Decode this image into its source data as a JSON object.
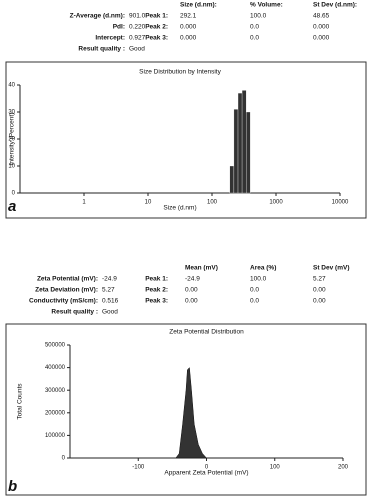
{
  "panel_a": {
    "label": "a",
    "summary": {
      "left": [
        [
          "Z-Average (d.nm):",
          "901.0"
        ],
        [
          "PdI:",
          "0.220"
        ],
        [
          "Intercept:",
          "0.927"
        ],
        [
          "Result quality :",
          "Good"
        ]
      ],
      "columns": [
        "Size (d.nm):",
        "% Volume:",
        "St Dev (d.nm):"
      ],
      "peaks": [
        [
          "Peak 1:",
          "292.1",
          "100.0",
          "48.65"
        ],
        [
          "Peak 2:",
          "0.000",
          "0.0",
          "0.000"
        ],
        [
          "Peak 3:",
          "0.000",
          "0.0",
          "0.000"
        ]
      ]
    }
  },
  "panel_b": {
    "label": "b",
    "summary": {
      "left": [
        [
          "Zeta Potential (mV):",
          "-24.9"
        ],
        [
          "Zeta Deviation (mV):",
          "5.27"
        ],
        [
          "Conductivity (mS/cm):",
          "0.516"
        ],
        [
          "Result quality :",
          "Good"
        ]
      ],
      "columns": [
        "Mean (mV)",
        "Area (%)",
        "St Dev (mV)"
      ],
      "peaks": [
        [
          "Peak 1:",
          "-24.9",
          "100.0",
          "5.27"
        ],
        [
          "Peak 2:",
          "0.00",
          "0.0",
          "0.00"
        ],
        [
          "Peak 3:",
          "0.00",
          "0.0",
          "0.00"
        ]
      ]
    }
  },
  "chart_data": [
    {
      "type": "histogram",
      "title": "Size Distribution by Intensity",
      "x_label": "Size (d.nm)",
      "y_label": "Intensity (Percent)",
      "bins": [
        190,
        220,
        255,
        295,
        342,
        396
      ],
      "values": [
        10,
        31,
        37,
        38,
        30
      ],
      "color": "#333333",
      "xlim": [
        0.1,
        10000
      ],
      "xticks": [
        1,
        10,
        100,
        1000,
        10000
      ],
      "log_x": true,
      "ylim": [
        0,
        40
      ],
      "yticks": [
        0,
        10,
        20,
        30,
        40
      ]
    },
    {
      "type": "area",
      "title": "Zeta Potential Distribution",
      "x_label": "Apparent Zeta Potential (mV)",
      "y_label": "Total Counts",
      "x": [
        -45,
        -40,
        -35,
        -30,
        -28,
        -25,
        -22,
        -18,
        -12,
        -6,
        0
      ],
      "values": [
        0,
        20000,
        150000,
        300000,
        390000,
        400000,
        300000,
        150000,
        60000,
        20000,
        0
      ],
      "color": "#333333",
      "xlim": [
        -200,
        200
      ],
      "xticks": [
        -100,
        0,
        100,
        200
      ],
      "ylim": [
        0,
        500000
      ],
      "yticks": [
        0,
        100000,
        200000,
        300000,
        400000,
        500000
      ]
    }
  ]
}
